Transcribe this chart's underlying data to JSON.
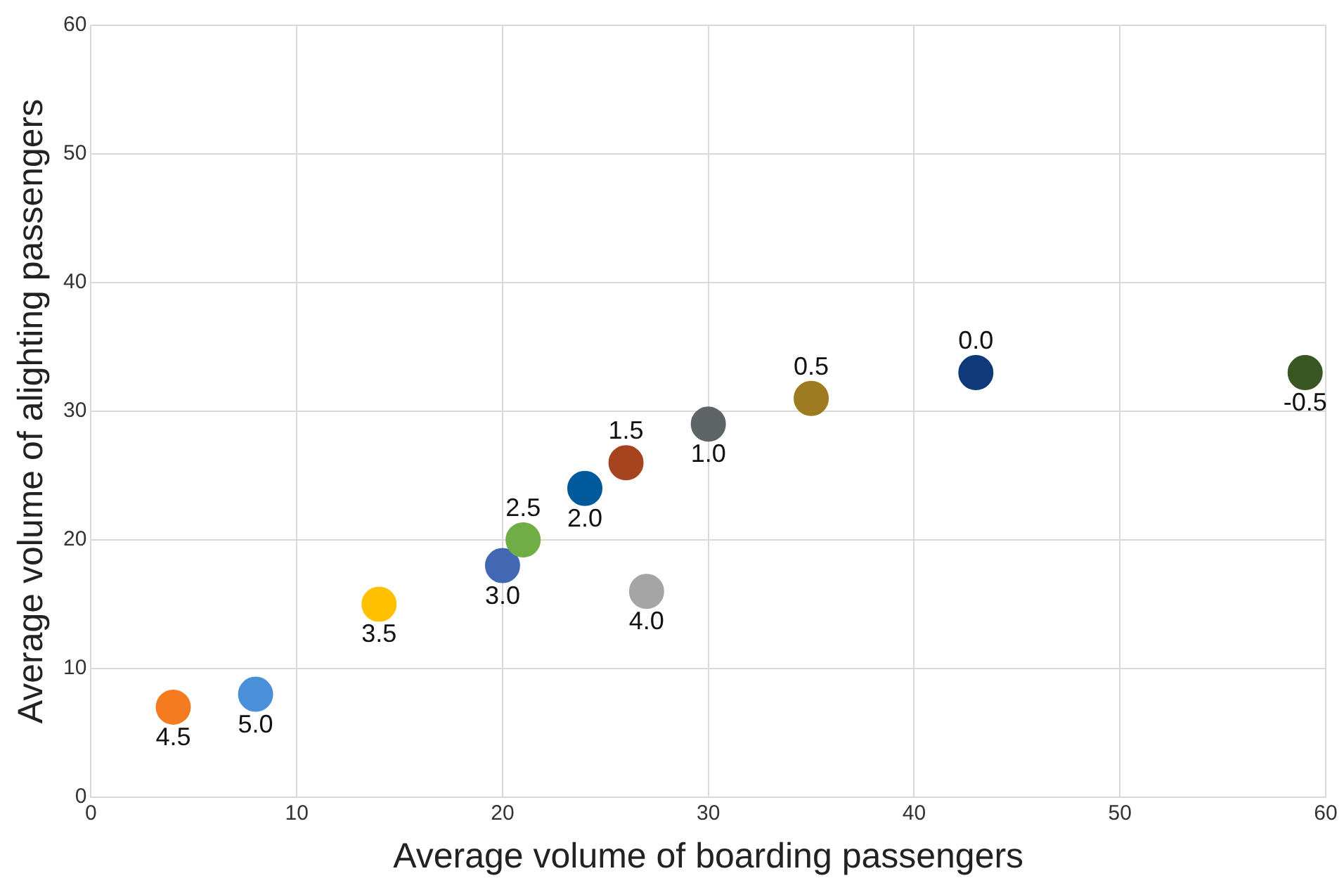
{
  "chart_data": {
    "type": "scatter",
    "xlabel": "Average volume of boarding passengers",
    "ylabel": "Average volume of alighting passengers",
    "x": [
      4,
      8,
      14,
      20,
      21,
      24,
      26,
      27,
      30,
      35,
      43,
      59
    ],
    "values": [
      7,
      8,
      15,
      18,
      20,
      24,
      26,
      16,
      29,
      31,
      33,
      33
    ],
    "colors": [
      "#f47b20",
      "#4a90d9",
      "#ffc000",
      "#4268b4",
      "#70ad47",
      "#005a9c",
      "#a5441f",
      "#a5a5a5",
      "#5f6566",
      "#9e7b20",
      "#0e3a7a",
      "#385723"
    ],
    "annotations": [
      {
        "text": "4.5",
        "x": 4,
        "y": 7
      },
      {
        "text": "5.0",
        "x": 8,
        "y": 8
      },
      {
        "text": "3.5",
        "x": 14,
        "y": 15
      },
      {
        "text": "3.0",
        "x": 20,
        "y": 18
      },
      {
        "text": "2.5",
        "x": 21,
        "y": 20
      },
      {
        "text": "2.0",
        "x": 24,
        "y": 24
      },
      {
        "text": "1.5",
        "x": 26,
        "y": 26
      },
      {
        "text": "4.0",
        "x": 27,
        "y": 16
      },
      {
        "text": "1.0",
        "x": 30,
        "y": 29
      },
      {
        "text": "0.5",
        "x": 35,
        "y": 31
      },
      {
        "text": "0.0",
        "x": 43,
        "y": 33
      },
      {
        "text": "-0.5",
        "x": 59,
        "y": 33
      }
    ],
    "xlim": [
      0,
      60
    ],
    "xticks": [
      0,
      10,
      20,
      30,
      40,
      50,
      60
    ],
    "ylim": [
      0,
      60
    ],
    "yticks": [
      0,
      10,
      20,
      30,
      40,
      50,
      60
    ],
    "grid": true,
    "legend": false,
    "marker": "circle"
  }
}
